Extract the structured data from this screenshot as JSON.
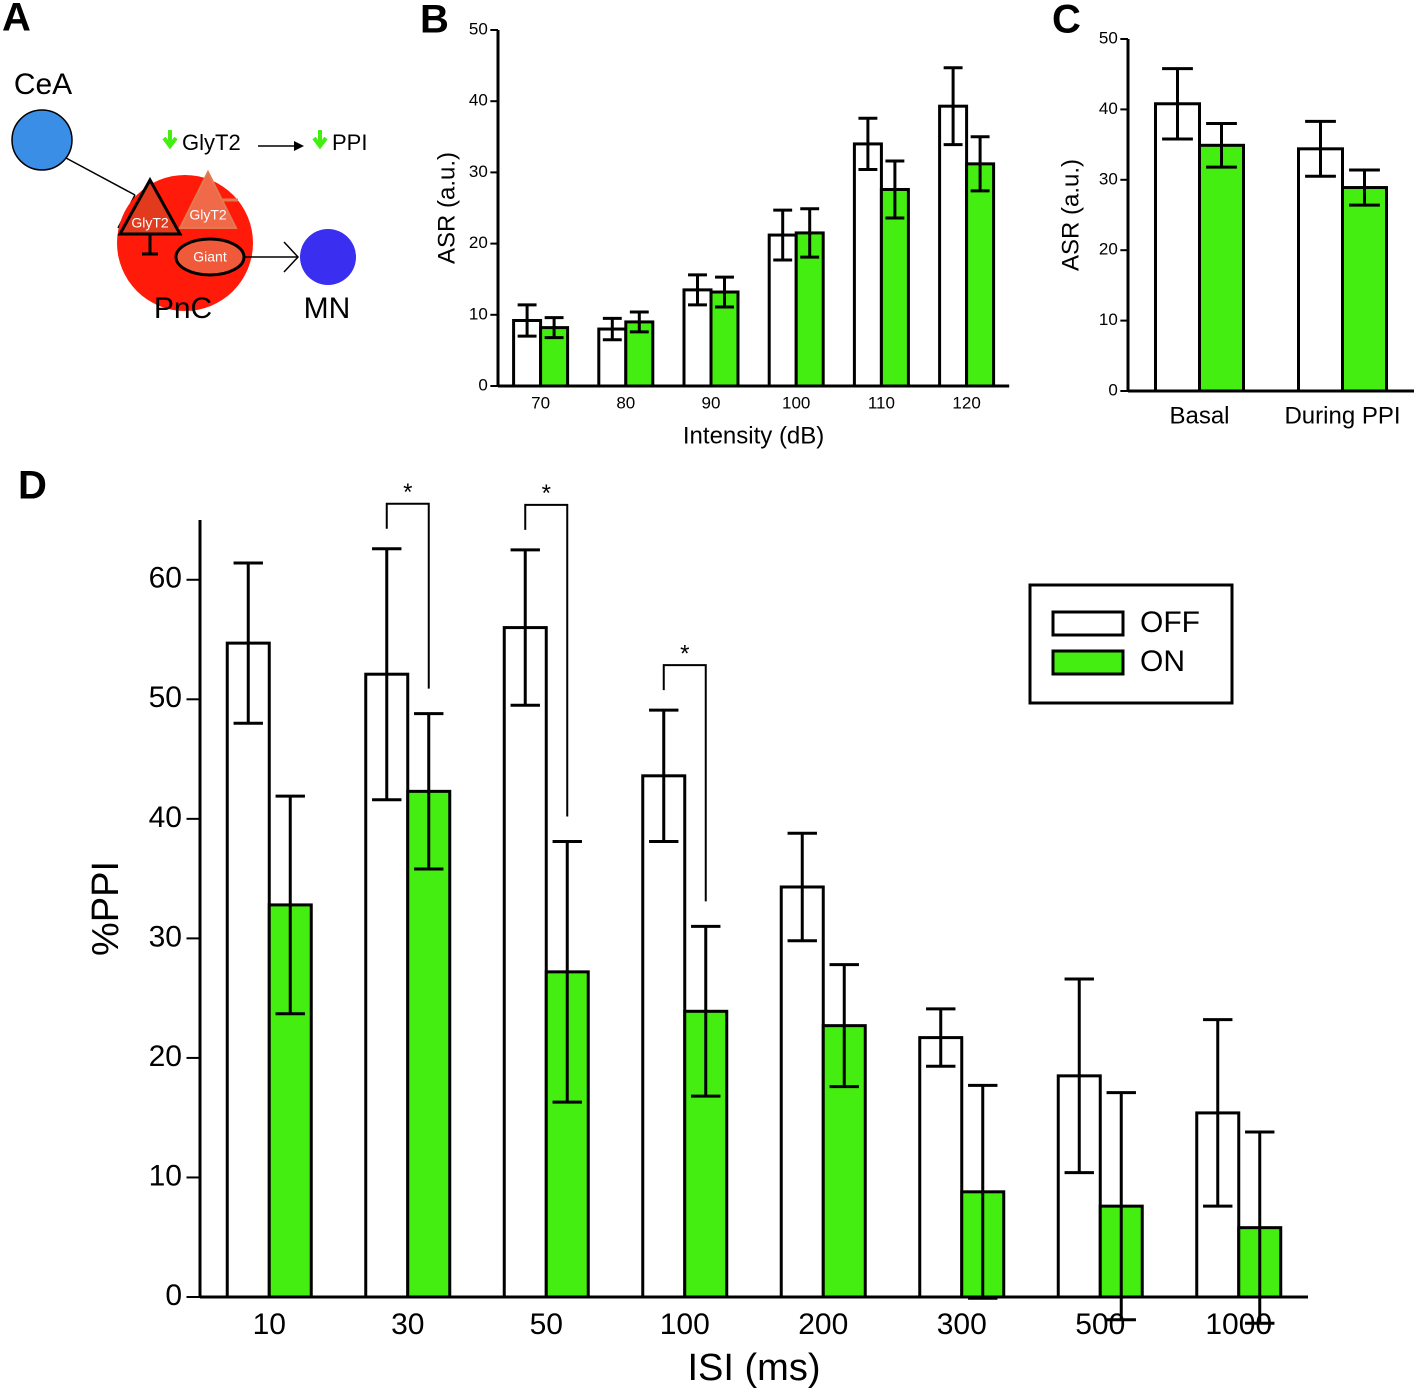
{
  "diagram": {
    "panel_label": "A",
    "nodes": {
      "cea": "CeA",
      "pnc": "PnC",
      "mn": "MN",
      "glyt2_inhib": "GlyT2",
      "glyt2_other": "GlyT2",
      "giant": "Giant"
    },
    "annotation": {
      "left": "GlyT2",
      "right": "PPI"
    }
  },
  "chart_data": [
    {
      "type": "bar",
      "panel_label": "B",
      "xlabel": "Intensity (dB)",
      "ylabel": "ASR (a.u.)",
      "categories": [
        "70",
        "80",
        "90",
        "100",
        "110",
        "120"
      ],
      "ylim": [
        0,
        50
      ],
      "yticks": [
        0,
        10,
        20,
        30,
        40,
        50
      ],
      "series": [
        {
          "color": "#ffffff",
          "values": [
            9.2,
            8.0,
            13.5,
            21.2,
            34.0,
            39.3
          ],
          "errors": [
            2.2,
            1.5,
            2.1,
            3.5,
            3.6,
            5.4
          ]
        },
        {
          "color": "#44ee11",
          "values": [
            8.2,
            9.0,
            13.2,
            21.5,
            27.6,
            31.2
          ],
          "errors": [
            1.4,
            1.4,
            2.1,
            3.4,
            4.0,
            3.8
          ]
        }
      ]
    },
    {
      "type": "bar",
      "panel_label": "C",
      "ylabel": "ASR (a.u.)",
      "categories": [
        "Basal",
        "During PPI"
      ],
      "ylim": [
        0,
        50
      ],
      "yticks": [
        0,
        10,
        20,
        30,
        40,
        50
      ],
      "series": [
        {
          "color": "#ffffff",
          "values": [
            40.8,
            34.4
          ],
          "errors": [
            5.0,
            3.9
          ]
        },
        {
          "color": "#44ee11",
          "values": [
            34.9,
            28.9
          ],
          "errors": [
            3.1,
            2.5
          ]
        }
      ]
    },
    {
      "type": "bar",
      "panel_label": "D",
      "xlabel": "ISI (ms)",
      "ylabel": "%PPI",
      "categories": [
        "10",
        "30",
        "50",
        "100",
        "200",
        "300",
        "500",
        "1000"
      ],
      "ylim": [
        0,
        65
      ],
      "yticks": [
        0,
        10,
        20,
        30,
        40,
        50,
        60
      ],
      "legend": "upper right",
      "series": [
        {
          "name": "OFF",
          "color": "#ffffff",
          "values": [
            54.7,
            52.1,
            56.0,
            43.6,
            34.3,
            21.7,
            18.5,
            15.4
          ],
          "errors": [
            6.7,
            10.5,
            6.5,
            5.5,
            4.5,
            2.4,
            8.1,
            7.8
          ]
        },
        {
          "name": "ON",
          "color": "#44ee11",
          "values": [
            32.8,
            42.3,
            27.2,
            23.9,
            22.7,
            8.8,
            7.6,
            5.8
          ],
          "errors": [
            9.1,
            6.5,
            10.9,
            7.1,
            5.1,
            8.9,
            9.5,
            8.0
          ]
        }
      ],
      "significance": [
        {
          "category": "30",
          "label": "*"
        },
        {
          "category": "50",
          "label": "*"
        },
        {
          "category": "100",
          "label": "*"
        }
      ]
    }
  ]
}
